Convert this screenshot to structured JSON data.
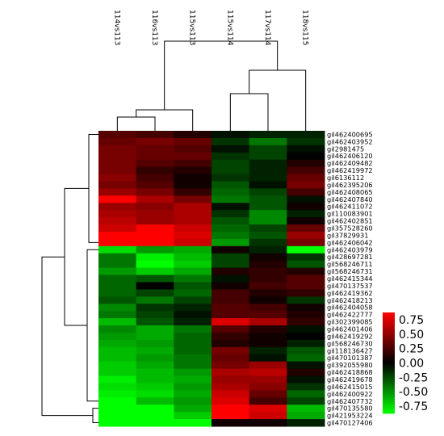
{
  "chart_data": {
    "type": "heatmap",
    "columns": [
      "114vs113",
      "116vs113",
      "115vs113",
      "115vs114",
      "117vs114",
      "118vs115"
    ],
    "rows": [
      "gil462400695",
      "gil462403952",
      "gil2981475",
      "gil462406120",
      "gil462409482",
      "gil462419972",
      "gil6136112",
      "gil462395206",
      "gil462408065",
      "gil462407840",
      "gil462411072",
      "gil110083901",
      "gil462402851",
      "gil357528260",
      "gil37829931",
      "gil462406042",
      "gil462403979",
      "gil428697281",
      "gil568246711",
      "gil568246731",
      "gil462415344",
      "gil470137537",
      "gil462419362",
      "gil462418213",
      "gil462404058",
      "gil462422777",
      "gil302399085",
      "gil462401406",
      "gil462419292",
      "gil568246730",
      "gil118136427",
      "gil470101387",
      "gil392055980",
      "gil462418868",
      "gil462419678",
      "gil462415015",
      "gil462400922",
      "gil462407732",
      "gil470135580",
      "gil421953224",
      "gil470127406"
    ],
    "values": [
      [
        0.25,
        0.2,
        0.1,
        -0.05,
        -0.1,
        -0.1
      ],
      [
        0.3,
        0.35,
        0.3,
        -0.15,
        -0.35,
        -0.15
      ],
      [
        0.35,
        0.3,
        0.25,
        -0.05,
        -0.2,
        -0.05
      ],
      [
        0.35,
        0.3,
        0.3,
        -0.15,
        -0.2,
        0.0
      ],
      [
        0.35,
        0.25,
        0.2,
        -0.2,
        -0.1,
        0.1
      ],
      [
        0.35,
        0.15,
        0.1,
        -0.2,
        -0.1,
        0.2
      ],
      [
        0.4,
        0.2,
        0.05,
        -0.15,
        -0.1,
        0.3
      ],
      [
        0.35,
        0.25,
        0.05,
        -0.25,
        -0.05,
        0.35
      ],
      [
        0.45,
        0.35,
        0.15,
        -0.3,
        -0.2,
        0.2
      ],
      [
        0.75,
        0.5,
        0.35,
        -0.35,
        -0.25,
        -0.05
      ],
      [
        0.45,
        0.4,
        0.5,
        -0.05,
        -0.25,
        0.05
      ],
      [
        0.5,
        0.45,
        0.5,
        -0.15,
        -0.4,
        -0.1
      ],
      [
        0.55,
        0.45,
        0.5,
        -0.25,
        -0.4,
        0.05
      ],
      [
        0.6,
        0.8,
        0.6,
        -0.3,
        -0.2,
        0.3
      ],
      [
        0.75,
        0.8,
        0.65,
        -0.35,
        -0.25,
        0.45
      ],
      [
        0.8,
        0.8,
        0.6,
        -0.45,
        -0.15,
        0.35
      ],
      [
        -0.65,
        -0.45,
        -0.5,
        0.05,
        -0.1,
        -0.75
      ],
      [
        -0.35,
        -0.7,
        -0.55,
        -0.2,
        0.05,
        -0.15
      ],
      [
        -0.35,
        -0.8,
        -0.6,
        -0.2,
        0.1,
        -0.25
      ],
      [
        -0.45,
        -0.6,
        -0.5,
        0.1,
        0.15,
        0.1
      ],
      [
        -0.3,
        -0.25,
        -0.35,
        -0.05,
        0.15,
        0.25
      ],
      [
        -0.3,
        0.0,
        -0.25,
        0.05,
        0.2,
        0.25
      ],
      [
        -0.3,
        -0.2,
        -0.3,
        0.2,
        0.1,
        0.15
      ],
      [
        -0.25,
        -0.35,
        -0.2,
        0.2,
        0.05,
        -0.15
      ],
      [
        -0.4,
        -0.15,
        -0.1,
        0.25,
        0.2,
        0.05
      ],
      [
        -0.35,
        -0.2,
        -0.05,
        0.25,
        0.25,
        0.1
      ],
      [
        -0.55,
        -0.25,
        -0.1,
        0.65,
        0.5,
        0.15
      ],
      [
        -0.4,
        -0.5,
        -0.35,
        0.25,
        0.1,
        -0.05
      ],
      [
        -0.45,
        -0.5,
        -0.3,
        0.15,
        0.05,
        0.0
      ],
      [
        -0.5,
        -0.45,
        -0.3,
        0.1,
        0.05,
        -0.1
      ],
      [
        -0.55,
        -0.5,
        -0.3,
        0.35,
        -0.1,
        -0.25
      ],
      [
        -0.55,
        -0.45,
        -0.35,
        0.3,
        -0.05,
        -0.3
      ],
      [
        -0.6,
        -0.5,
        -0.35,
        0.35,
        0.45,
        -0.05
      ],
      [
        -0.6,
        -0.55,
        -0.45,
        0.5,
        0.55,
        0.1
      ],
      [
        -0.7,
        -0.55,
        -0.5,
        0.45,
        0.45,
        -0.05
      ],
      [
        -0.65,
        -0.6,
        -0.45,
        0.5,
        0.4,
        -0.15
      ],
      [
        -0.7,
        -0.65,
        -0.5,
        0.6,
        0.3,
        -0.3
      ],
      [
        -0.75,
        -0.55,
        -0.45,
        0.65,
        0.2,
        -0.2
      ],
      [
        -0.8,
        -0.75,
        -0.5,
        0.8,
        0.65,
        -0.55
      ],
      [
        -0.8,
        -0.8,
        -0.6,
        0.85,
        0.6,
        -0.5
      ],
      [
        -0.75,
        -0.75,
        -0.8,
        0.05,
        0.05,
        -0.1
      ]
    ],
    "color_scale": {
      "min": -0.75,
      "max": 0.75,
      "ticks": [
        "0.75",
        "0.50",
        "0.25",
        "0.00",
        "-0.25",
        "-0.50",
        "-0.75"
      ],
      "low_color": "#00ff00",
      "mid_color": "#000000",
      "high_color": "#ff0000"
    },
    "dendrograms": {
      "columns": true,
      "rows": true
    }
  }
}
